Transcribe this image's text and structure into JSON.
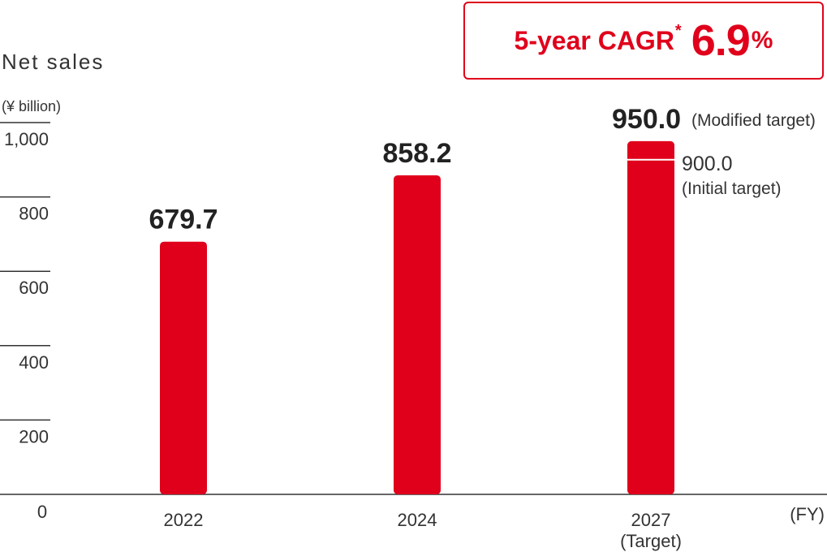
{
  "cagr": {
    "label": "5-year CAGR",
    "asterisk": "*",
    "value": "6.9",
    "unit": "%"
  },
  "colors": {
    "bar": "#e0001b",
    "accent": "#e0001b",
    "text": "#333333",
    "axis": "#333333"
  },
  "chart_data": {
    "type": "bar",
    "title": "Net sales",
    "ylabel": "(¥ billion)",
    "xlabel": "(FY)",
    "ylim": [
      0,
      1000
    ],
    "yticks": [
      {
        "value": 0,
        "label": "0"
      },
      {
        "value": 200,
        "label": "200"
      },
      {
        "value": 400,
        "label": "400"
      },
      {
        "value": 600,
        "label": "600"
      },
      {
        "value": 800,
        "label": "800"
      },
      {
        "value": 1000,
        "label": "1,000"
      }
    ],
    "categories": [
      {
        "label": "2022",
        "sublabel": ""
      },
      {
        "label": "2024",
        "sublabel": ""
      },
      {
        "label": "2027",
        "sublabel": "(Target)"
      }
    ],
    "values": [
      679.7,
      858.2,
      950.0
    ],
    "value_labels": [
      "679.7",
      "858.2",
      "950.0"
    ],
    "value_notes": [
      "",
      "",
      "(Modified target)"
    ],
    "reference": {
      "category_index": 2,
      "value": 900.0,
      "label": "900.0",
      "note": "(Initial target)"
    }
  }
}
